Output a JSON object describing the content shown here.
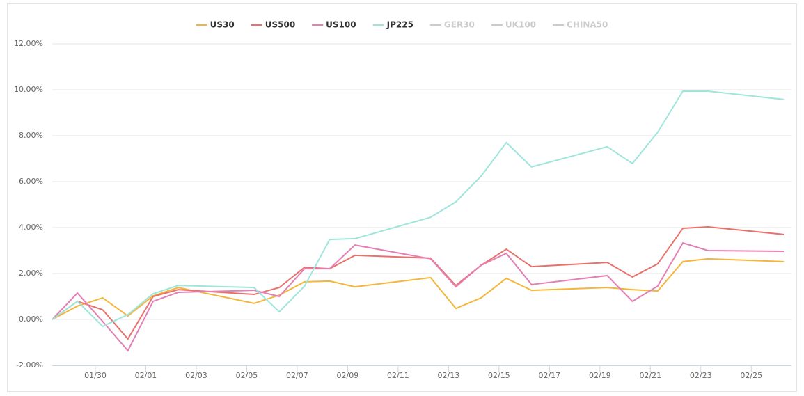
{
  "chart_data": {
    "type": "line",
    "x": [
      "01/28",
      "01/29",
      "01/30",
      "01/31",
      "02/01",
      "02/02",
      "02/05",
      "02/06",
      "02/07",
      "02/08",
      "02/09",
      "02/12",
      "02/13",
      "02/14",
      "02/15",
      "02/16",
      "02/19",
      "02/20",
      "02/21",
      "02/22",
      "02/23",
      "02/26"
    ],
    "series": [
      {
        "name": "US30",
        "color": "#f4b63a",
        "visible": true,
        "values": [
          0,
          0.58,
          0.94,
          0.15,
          1.03,
          1.39,
          0.7,
          1.06,
          1.64,
          1.67,
          1.42,
          1.82,
          0.48,
          0.94,
          1.79,
          1.27,
          1.39,
          1.3,
          1.24,
          2.52,
          2.64,
          2.52
        ]
      },
      {
        "name": "US500",
        "color": "#e8716b",
        "visible": true,
        "values": [
          0,
          0.79,
          0.42,
          -0.85,
          1.0,
          1.3,
          1.09,
          1.39,
          2.27,
          2.21,
          2.79,
          2.67,
          1.48,
          2.36,
          3.06,
          2.3,
          2.48,
          1.85,
          2.42,
          3.97,
          4.03,
          3.7
        ]
      },
      {
        "name": "US100",
        "color": "#e47fb4",
        "visible": true,
        "values": [
          0,
          1.15,
          -0.09,
          -1.36,
          0.79,
          1.18,
          1.27,
          1.0,
          2.21,
          2.21,
          3.24,
          2.64,
          1.42,
          2.36,
          2.88,
          1.52,
          1.91,
          0.79,
          1.45,
          3.33,
          3.0,
          2.97
        ]
      },
      {
        "name": "JP225",
        "color": "#9fe5dc",
        "visible": true,
        "values": [
          0,
          0.79,
          -0.3,
          0.21,
          1.12,
          1.48,
          1.39,
          0.33,
          1.45,
          3.48,
          3.52,
          4.45,
          5.12,
          6.24,
          7.7,
          6.64,
          7.52,
          6.79,
          8.15,
          9.94,
          9.94,
          9.58
        ]
      },
      {
        "name": "GER30",
        "color": "#cccccc",
        "visible": false
      },
      {
        "name": "UK100",
        "color": "#cccccc",
        "visible": false
      },
      {
        "name": "CHINA50",
        "color": "#cccccc",
        "visible": false
      }
    ],
    "xlim": [
      "01/28",
      "02/26"
    ],
    "xticks": [
      "01/30",
      "02/01",
      "02/03",
      "02/05",
      "02/07",
      "02/09",
      "02/11",
      "02/13",
      "02/15",
      "02/17",
      "02/19",
      "02/21",
      "02/23",
      "02/25"
    ],
    "ylim": [
      -2,
      12
    ],
    "yticks": [
      {
        "value": -2,
        "label": "-2.00%"
      },
      {
        "value": 0,
        "label": "0.00%"
      },
      {
        "value": 2,
        "label": "2.00%"
      },
      {
        "value": 4,
        "label": "4.00%"
      },
      {
        "value": 6,
        "label": "6.00%"
      },
      {
        "value": 8,
        "label": "8.00%"
      },
      {
        "value": 10,
        "label": "10.00%"
      },
      {
        "value": 12,
        "label": "12.00%"
      }
    ],
    "grid": true,
    "legend": "top"
  }
}
